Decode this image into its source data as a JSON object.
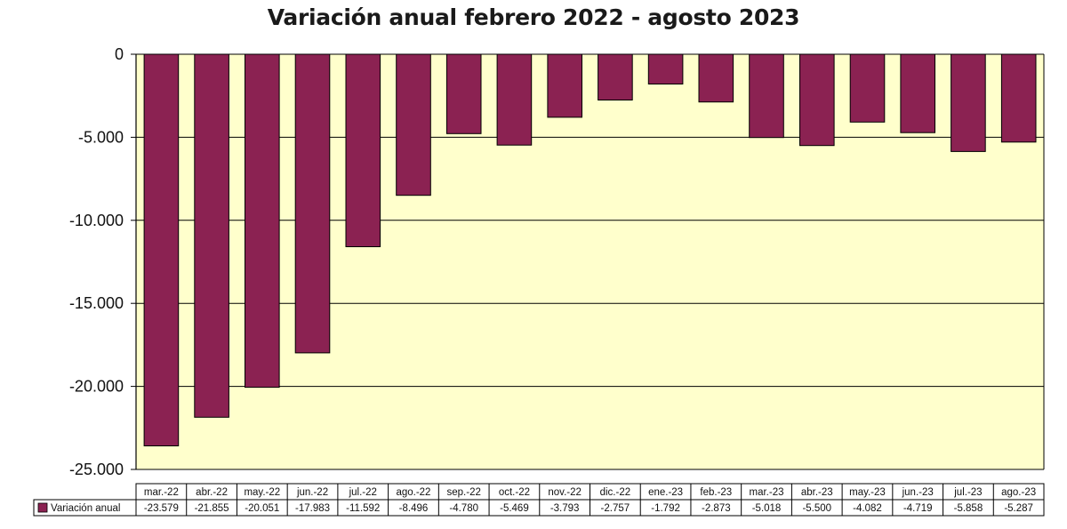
{
  "chart_data": {
    "type": "bar",
    "title": "Variación anual febrero 2022 - agosto 2023",
    "categories": [
      "mar.-22",
      "abr.-22",
      "may.-22",
      "jun.-22",
      "jul.-22",
      "ago.-22",
      "sep.-22",
      "oct.-22",
      "nov.-22",
      "dic.-22",
      "ene.-23",
      "feb.-23",
      "mar.-23",
      "abr.-23",
      "may.-23",
      "jun.-23",
      "jul.-23",
      "ago.-23"
    ],
    "series": [
      {
        "name": "Variación anual",
        "values": [
          -23579,
          -21855,
          -20051,
          -17983,
          -11592,
          -8496,
          -4780,
          -5469,
          -3793,
          -2757,
          -1792,
          -2873,
          -5018,
          -5500,
          -4082,
          -4719,
          -5858,
          -5287
        ],
        "value_labels": [
          "-23.579",
          "-21.855",
          "-20.051",
          "-17.983",
          "-11.592",
          "-8.496",
          "-4.780",
          "-5.469",
          "-3.793",
          "-2.757",
          "-1.792",
          "-2.873",
          "-5.018",
          "-5.500",
          "-4.082",
          "-4.719",
          "-5.858",
          "-5.287"
        ],
        "color": "#8b2252"
      }
    ],
    "ylim": [
      -25000,
      0
    ],
    "yticks": [
      0,
      -5000,
      -10000,
      -15000,
      -20000,
      -25000
    ],
    "ytick_labels": [
      "0",
      "-5.000",
      "-10.000",
      "-15.000",
      "-20.000",
      "-25.000"
    ],
    "grid": true,
    "legend": "data-table",
    "plot_background": "#ffffcc"
  }
}
